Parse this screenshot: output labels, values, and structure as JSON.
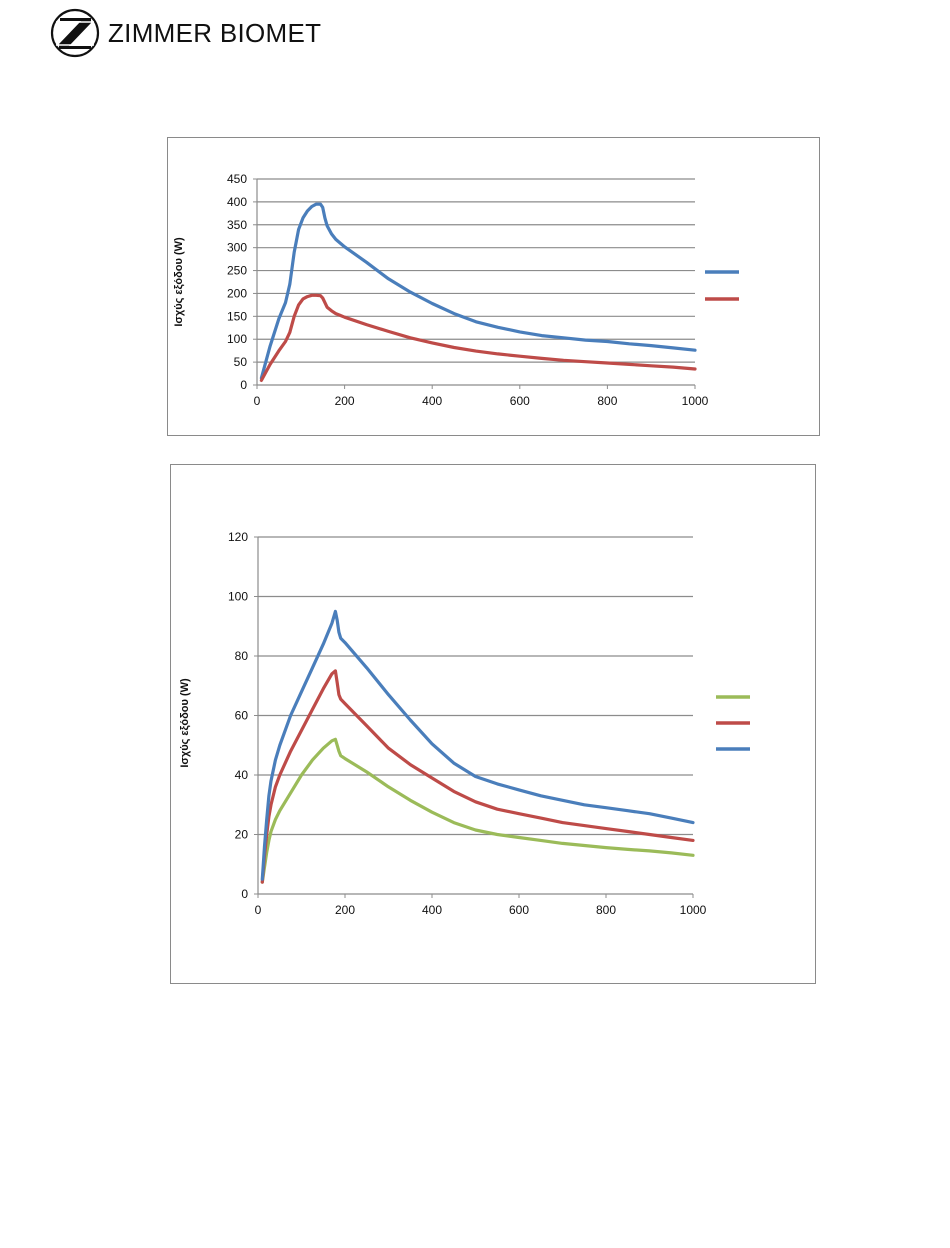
{
  "brand": {
    "name": "ZIMMER BIOMET",
    "logo_icon": "zimmer-z-logo-icon"
  },
  "chart_data": [
    {
      "type": "line",
      "ylabel": "Ισχύς εξόδου (W)",
      "xlim": [
        0,
        1000
      ],
      "ylim": [
        0,
        450
      ],
      "xticks": [
        0,
        200,
        400,
        600,
        800,
        1000
      ],
      "yticks": [
        0,
        50,
        100,
        150,
        200,
        250,
        300,
        350,
        400,
        450
      ],
      "grid": "horizontal",
      "legend_position": "right",
      "series": [
        {
          "color": "#4a7ebb",
          "x": [
            10,
            30,
            50,
            65,
            75,
            85,
            95,
            105,
            115,
            125,
            135,
            145,
            150,
            155,
            160,
            170,
            180,
            190,
            200,
            250,
            300,
            350,
            400,
            450,
            500,
            550,
            600,
            650,
            700,
            750,
            800,
            850,
            900,
            950,
            1000
          ],
          "y": [
            15,
            85,
            145,
            180,
            220,
            290,
            340,
            365,
            380,
            390,
            395,
            395,
            388,
            365,
            348,
            330,
            318,
            310,
            302,
            268,
            232,
            203,
            178,
            156,
            138,
            126,
            116,
            108,
            103,
            98,
            95,
            90,
            86,
            81,
            76
          ]
        },
        {
          "color": "#be4b48",
          "x": [
            10,
            30,
            50,
            65,
            75,
            85,
            95,
            105,
            115,
            125,
            135,
            145,
            150,
            155,
            160,
            170,
            180,
            190,
            200,
            250,
            300,
            350,
            400,
            450,
            500,
            550,
            600,
            650,
            700,
            750,
            800,
            850,
            900,
            950,
            1000
          ],
          "y": [
            10,
            45,
            75,
            95,
            115,
            150,
            175,
            188,
            193,
            196,
            196,
            195,
            190,
            180,
            170,
            162,
            156,
            152,
            148,
            132,
            117,
            103,
            92,
            82,
            74,
            68,
            63,
            58,
            54,
            51,
            48,
            45,
            42,
            39,
            35
          ]
        }
      ]
    },
    {
      "type": "line",
      "ylabel": "Ισχύς εξόδου (W)",
      "xlim": [
        0,
        1000
      ],
      "ylim": [
        0,
        120
      ],
      "xticks": [
        0,
        200,
        400,
        600,
        800,
        1000
      ],
      "yticks": [
        0,
        20,
        40,
        60,
        80,
        100,
        120
      ],
      "grid": "horizontal",
      "legend_position": "right",
      "series": [
        {
          "color": "#9bbb59",
          "x": [
            10,
            15,
            20,
            25,
            30,
            40,
            50,
            75,
            100,
            125,
            150,
            170,
            178,
            182,
            186,
            190,
            200,
            250,
            300,
            350,
            400,
            450,
            500,
            550,
            600,
            650,
            700,
            750,
            800,
            850,
            900,
            950,
            1000
          ],
          "y": [
            4,
            9,
            14,
            18,
            21,
            25,
            28,
            34,
            40,
            45,
            49,
            51.5,
            52,
            50,
            48,
            46.5,
            45.5,
            41,
            36,
            31.5,
            27.5,
            24,
            21.5,
            20,
            19,
            18,
            17,
            16.3,
            15.6,
            15,
            14.5,
            13.8,
            13
          ]
        },
        {
          "color": "#be4b48",
          "x": [
            10,
            15,
            20,
            25,
            30,
            40,
            50,
            75,
            100,
            125,
            150,
            170,
            178,
            182,
            186,
            190,
            200,
            250,
            300,
            350,
            400,
            450,
            500,
            550,
            600,
            650,
            700,
            750,
            800,
            850,
            900,
            950,
            1000
          ],
          "y": [
            4,
            13,
            20,
            26,
            30,
            36,
            40,
            48,
            55,
            62,
            69,
            74,
            75,
            71,
            67,
            65.5,
            64,
            56.5,
            49,
            43.5,
            39,
            34.5,
            31,
            28.5,
            27,
            25.5,
            24,
            23,
            22,
            21,
            20,
            19,
            18
          ]
        },
        {
          "color": "#4a7ebb",
          "x": [
            10,
            15,
            20,
            25,
            30,
            40,
            50,
            75,
            100,
            125,
            150,
            170,
            178,
            182,
            186,
            190,
            200,
            250,
            300,
            350,
            400,
            450,
            500,
            550,
            600,
            650,
            700,
            750,
            800,
            850,
            900,
            950,
            1000
          ],
          "y": [
            5,
            16,
            25,
            33,
            38,
            45,
            50,
            60,
            68,
            76,
            84,
            91,
            95,
            92,
            88,
            86,
            84.5,
            76,
            67,
            58.5,
            50.5,
            44,
            39.5,
            37,
            35,
            33,
            31.5,
            30,
            29,
            28,
            27,
            25.5,
            24
          ]
        }
      ]
    }
  ]
}
